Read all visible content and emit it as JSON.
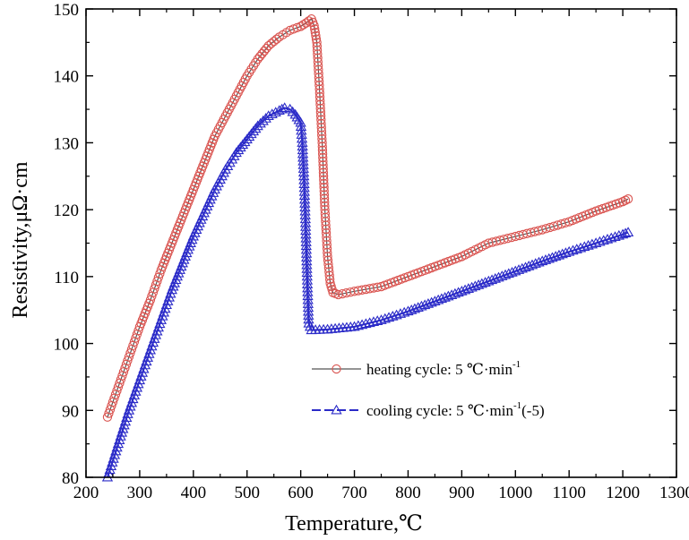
{
  "chart_data": {
    "type": "line",
    "xlabel": "Temperature,℃",
    "ylabel": "Resistivity,μΩ·cm",
    "xlim": [
      200,
      1300
    ],
    "ylim": [
      80,
      150
    ],
    "x_ticks": [
      "200",
      "300",
      "400",
      "500",
      "600",
      "700",
      "800",
      "900",
      "1000",
      "1100",
      "1200",
      "1300"
    ],
    "y_ticks": [
      "80",
      "90",
      "100",
      "110",
      "120",
      "130",
      "140",
      "150"
    ],
    "legend_position": "center-right",
    "grid": false,
    "series": [
      {
        "name": "heating cycle: 5 ℃·min",
        "name_superscript": "-1",
        "name_suffix": "",
        "color": "#d9534f",
        "marker": "circle",
        "x": [
          240,
          260,
          280,
          300,
          320,
          340,
          360,
          380,
          400,
          420,
          440,
          460,
          480,
          500,
          520,
          540,
          560,
          580,
          600,
          610,
          620,
          625,
          630,
          635,
          640,
          645,
          650,
          655,
          660,
          670,
          700,
          750,
          800,
          850,
          900,
          950,
          1000,
          1050,
          1100,
          1150,
          1200,
          1210
        ],
        "y": [
          89,
          93.5,
          98,
          102.5,
          106.5,
          111,
          115,
          119,
          123,
          127,
          131,
          134,
          137,
          140,
          142.5,
          144.5,
          145.8,
          146.8,
          147.4,
          147.9,
          148.5,
          147.5,
          145,
          138,
          130,
          120,
          113,
          109,
          107.6,
          107.3,
          107.8,
          108.5,
          110,
          111.5,
          113,
          115,
          116,
          117,
          118.2,
          119.8,
          121.2,
          121.6
        ]
      },
      {
        "name": "cooling cycle: 5 ℃·min",
        "name_superscript": "-1",
        "name_suffix": "(-5)",
        "color": "#2b2bc8",
        "marker": "triangle",
        "x": [
          240,
          260,
          280,
          300,
          320,
          340,
          360,
          380,
          400,
          420,
          440,
          460,
          480,
          500,
          520,
          540,
          560,
          570,
          580,
          590,
          600,
          603,
          606,
          609,
          612,
          615,
          620,
          650,
          700,
          750,
          800,
          850,
          900,
          950,
          1000,
          1050,
          1100,
          1150,
          1200,
          1210
        ],
        "y": [
          80,
          85,
          90,
          94.5,
          99,
          103.5,
          108,
          112,
          116,
          119.5,
          123,
          126,
          128.5,
          130.5,
          132.5,
          134,
          134.8,
          135.2,
          135,
          134.2,
          133,
          130,
          125,
          118,
          110,
          103,
          102,
          102.1,
          102.5,
          103.5,
          104.8,
          106.3,
          107.8,
          109.3,
          110.8,
          112.3,
          113.7,
          115,
          116.3,
          116.6
        ]
      }
    ]
  }
}
